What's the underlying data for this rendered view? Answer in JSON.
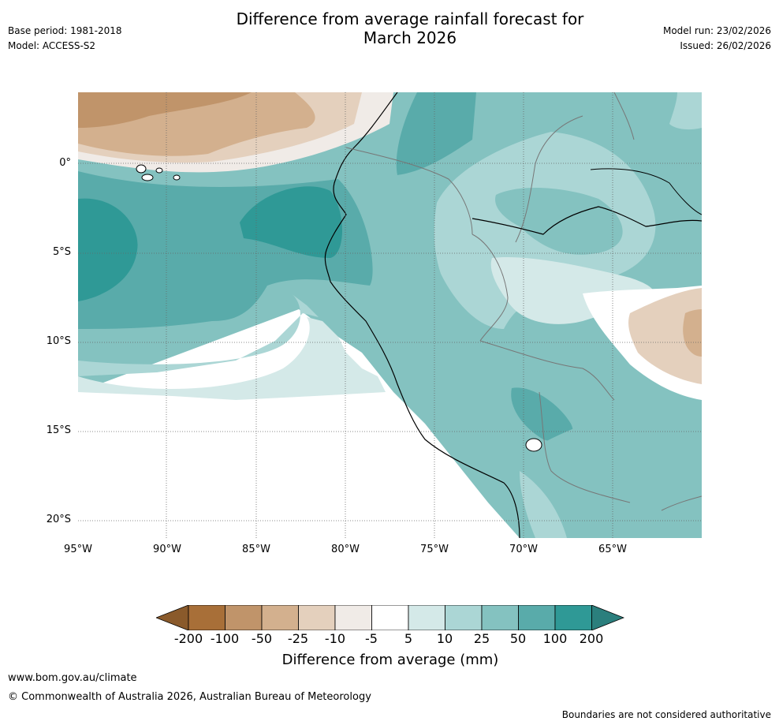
{
  "header": {
    "title_line1": "Difference from average rainfall forecast for",
    "title_line2": "March 2026",
    "base_period": "Base period: 1981-2018",
    "model": "Model: ACCESS-S2",
    "model_run": "Model run: 23/02/2026",
    "issued": "Issued: 26/02/2026"
  },
  "map": {
    "lon_labels": [
      "95°W",
      "90°W",
      "85°W",
      "80°W",
      "75°W",
      "70°W",
      "65°W"
    ],
    "lat_labels": [
      "0°",
      "5°S",
      "10°S",
      "15°S",
      "20°S"
    ]
  },
  "colorbar": {
    "title": "Difference from average (mm)",
    "ticks": [
      "-200",
      "-100",
      "-50",
      "-25",
      "-10",
      "-5",
      "5",
      "10",
      "25",
      "50",
      "100",
      "200"
    ],
    "colors": [
      "#a86f38",
      "#c0946a",
      "#d3b08e",
      "#e4d0bd",
      "#f0ebe7",
      "#ffffff",
      "#d4e9e8",
      "#abd6d5",
      "#84c2c0",
      "#59abaa",
      "#2f9996"
    ],
    "low_color": "#8a5a2b",
    "high_color": "#2b7f7d"
  },
  "footer": {
    "url": "www.bom.gov.au/climate",
    "copyright": "© Commonwealth of Australia 2026, Australian Bureau of Meteorology",
    "disclaimer": "Boundaries are not considered authoritative"
  }
}
